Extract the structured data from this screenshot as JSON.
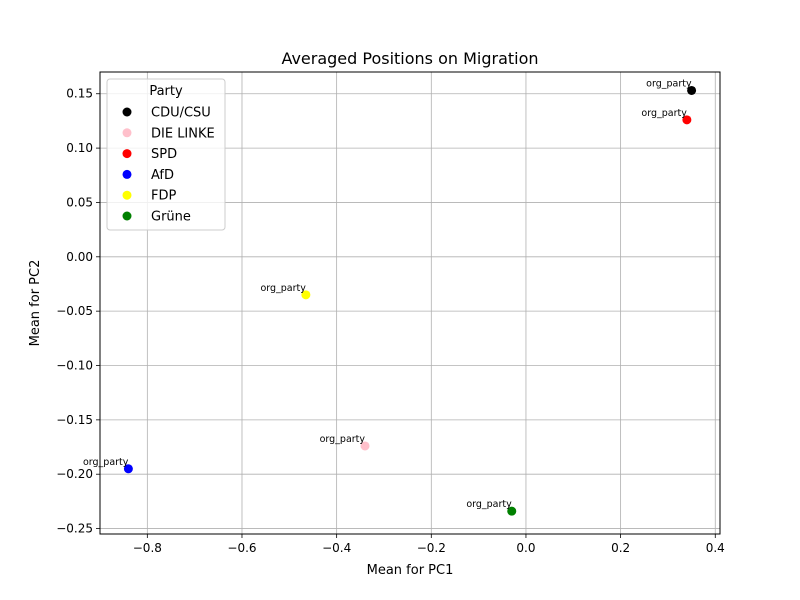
{
  "chart_data": {
    "type": "scatter",
    "title": "Averaged Positions on Migration",
    "xlabel": "Mean for PC1",
    "ylabel": "Mean for PC2",
    "xlim": [
      -0.9,
      0.41
    ],
    "ylim": [
      -0.255,
      0.17
    ],
    "xticks": [
      -0.8,
      -0.6,
      -0.4,
      -0.2,
      0.0,
      0.2,
      0.4
    ],
    "xtick_labels": [
      "−0.8",
      "−0.6",
      "−0.4",
      "−0.2",
      "0.0",
      "0.2",
      "0.4"
    ],
    "yticks": [
      0.15,
      0.1,
      0.05,
      0.0,
      -0.05,
      -0.1,
      -0.15,
      -0.2,
      -0.25
    ],
    "ytick_labels": [
      "0.15",
      "0.10",
      "0.05",
      "0.00",
      "−0.05",
      "−0.10",
      "−0.15",
      "−0.20",
      "−0.25"
    ],
    "grid": true,
    "legend": {
      "title": "Party",
      "position": "top-left"
    },
    "series": [
      {
        "name": "CDU/CSU",
        "color": "#000000",
        "x": 0.35,
        "y": 0.153,
        "label": "org_party"
      },
      {
        "name": "DIE LINKE",
        "color": "#ffc0cb",
        "x": -0.34,
        "y": -0.174,
        "label": "org_party"
      },
      {
        "name": "SPD",
        "color": "#ff0000",
        "x": 0.34,
        "y": 0.126,
        "label": "org_party"
      },
      {
        "name": "AfD",
        "color": "#0000ff",
        "x": -0.84,
        "y": -0.195,
        "label": "org_party"
      },
      {
        "name": "FDP",
        "color": "#ffff00",
        "x": -0.465,
        "y": -0.035,
        "label": "org_party"
      },
      {
        "name": "Grüne",
        "color": "#008000",
        "x": -0.03,
        "y": -0.234,
        "label": "org_party"
      }
    ]
  }
}
